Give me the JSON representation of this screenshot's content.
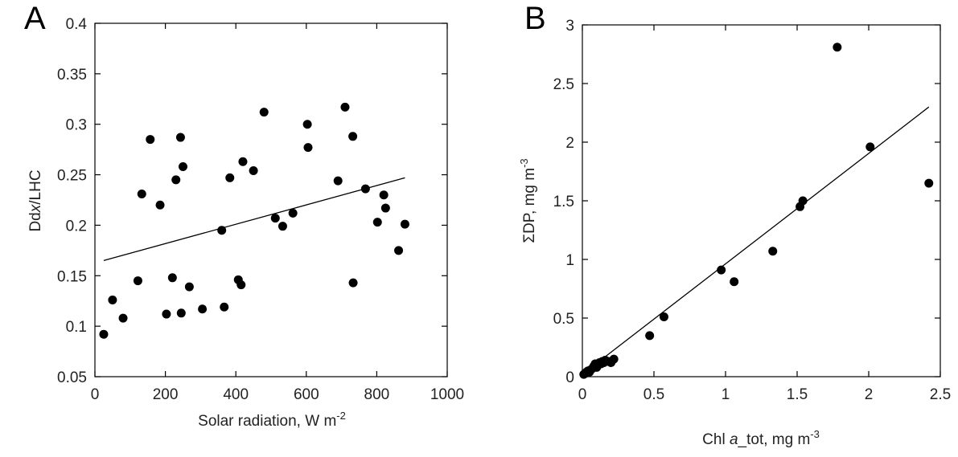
{
  "chart_data": [
    {
      "panel": "A",
      "type": "scatter",
      "xlabel": {
        "text": "Solar radiation, W m",
        "sup": "-2"
      },
      "ylabel": {
        "main": "Ddx",
        "italic": "x",
        "prefix": "Dd",
        "suffix": "/LHC",
        "text": "Ddx/LHC"
      },
      "xlim": [
        0,
        1000
      ],
      "ylim": [
        0.05,
        0.4
      ],
      "xticks": [
        0,
        200,
        400,
        600,
        800,
        1000
      ],
      "yticks": [
        0.05,
        0.1,
        0.15,
        0.2,
        0.25,
        0.3,
        0.35,
        0.4
      ],
      "xtick_labels": [
        "0",
        "200",
        "400",
        "600",
        "800",
        "1000"
      ],
      "ytick_labels": [
        "0.05",
        "0.1",
        "0.15",
        "0.2",
        "0.25",
        "0.3",
        "0.35",
        "0.4"
      ],
      "grid": false,
      "points": [
        {
          "x": 25,
          "y": 0.092
        },
        {
          "x": 50,
          "y": 0.126
        },
        {
          "x": 80,
          "y": 0.108
        },
        {
          "x": 122,
          "y": 0.145
        },
        {
          "x": 133,
          "y": 0.231
        },
        {
          "x": 157,
          "y": 0.285
        },
        {
          "x": 185,
          "y": 0.22
        },
        {
          "x": 203,
          "y": 0.112
        },
        {
          "x": 220,
          "y": 0.148
        },
        {
          "x": 230,
          "y": 0.245
        },
        {
          "x": 243,
          "y": 0.287
        },
        {
          "x": 245,
          "y": 0.113
        },
        {
          "x": 250,
          "y": 0.258
        },
        {
          "x": 268,
          "y": 0.139
        },
        {
          "x": 305,
          "y": 0.117
        },
        {
          "x": 360,
          "y": 0.195
        },
        {
          "x": 367,
          "y": 0.119
        },
        {
          "x": 383,
          "y": 0.247
        },
        {
          "x": 407,
          "y": 0.146
        },
        {
          "x": 415,
          "y": 0.141
        },
        {
          "x": 420,
          "y": 0.263
        },
        {
          "x": 450,
          "y": 0.254
        },
        {
          "x": 480,
          "y": 0.312
        },
        {
          "x": 512,
          "y": 0.207
        },
        {
          "x": 533,
          "y": 0.199
        },
        {
          "x": 562,
          "y": 0.212
        },
        {
          "x": 603,
          "y": 0.3
        },
        {
          "x": 605,
          "y": 0.277
        },
        {
          "x": 690,
          "y": 0.244
        },
        {
          "x": 710,
          "y": 0.317
        },
        {
          "x": 732,
          "y": 0.288
        },
        {
          "x": 733,
          "y": 0.143
        },
        {
          "x": 768,
          "y": 0.236
        },
        {
          "x": 802,
          "y": 0.203
        },
        {
          "x": 820,
          "y": 0.23
        },
        {
          "x": 825,
          "y": 0.217
        },
        {
          "x": 862,
          "y": 0.175
        },
        {
          "x": 880,
          "y": 0.201
        }
      ],
      "fit_line": {
        "x": [
          25,
          880
        ],
        "y": [
          0.165,
          0.247
        ]
      }
    },
    {
      "panel": "B",
      "type": "scatter",
      "xlabel": {
        "prefix": "Chl ",
        "italic": "a",
        "suffix": "_tot, mg m",
        "sup": "-3",
        "text": "Chl a_tot, mg m-3"
      },
      "ylabel": {
        "text": "ΣDP, mg m",
        "sup": "-3"
      },
      "xlim": [
        0,
        2.5
      ],
      "ylim": [
        0,
        3
      ],
      "xticks": [
        0,
        0.5,
        1,
        1.5,
        2,
        2.5
      ],
      "yticks": [
        0,
        0.5,
        1,
        1.5,
        2,
        2.5,
        3
      ],
      "xtick_labels": [
        "0",
        "0.5",
        "1",
        "1.5",
        "2",
        "2.5"
      ],
      "ytick_labels": [
        "0",
        "0.5",
        "1",
        "1.5",
        "2",
        "2.5",
        "3"
      ],
      "grid": false,
      "points": [
        {
          "x": 0.01,
          "y": 0.02
        },
        {
          "x": 0.02,
          "y": 0.03
        },
        {
          "x": 0.03,
          "y": 0.04
        },
        {
          "x": 0.04,
          "y": 0.05
        },
        {
          "x": 0.05,
          "y": 0.04
        },
        {
          "x": 0.06,
          "y": 0.06
        },
        {
          "x": 0.07,
          "y": 0.07
        },
        {
          "x": 0.08,
          "y": 0.09
        },
        {
          "x": 0.09,
          "y": 0.11
        },
        {
          "x": 0.1,
          "y": 0.08
        },
        {
          "x": 0.11,
          "y": 0.1
        },
        {
          "x": 0.12,
          "y": 0.12
        },
        {
          "x": 0.13,
          "y": 0.11
        },
        {
          "x": 0.14,
          "y": 0.13
        },
        {
          "x": 0.15,
          "y": 0.12
        },
        {
          "x": 0.16,
          "y": 0.14
        },
        {
          "x": 0.18,
          "y": 0.13
        },
        {
          "x": 0.2,
          "y": 0.12
        },
        {
          "x": 0.22,
          "y": 0.15
        },
        {
          "x": 0.47,
          "y": 0.35
        },
        {
          "x": 0.57,
          "y": 0.51
        },
        {
          "x": 0.97,
          "y": 0.91
        },
        {
          "x": 1.06,
          "y": 0.81
        },
        {
          "x": 1.33,
          "y": 1.07
        },
        {
          "x": 1.52,
          "y": 1.45
        },
        {
          "x": 1.54,
          "y": 1.5
        },
        {
          "x": 1.78,
          "y": 2.81
        },
        {
          "x": 2.01,
          "y": 1.96
        },
        {
          "x": 2.42,
          "y": 1.65
        }
      ],
      "fit_line": {
        "x": [
          0,
          2.42
        ],
        "y": [
          0.02,
          2.3
        ]
      }
    }
  ],
  "panels": [
    {
      "letter": "A"
    },
    {
      "letter": "B"
    }
  ],
  "marker_color": "#000000",
  "line_color": "#000000"
}
